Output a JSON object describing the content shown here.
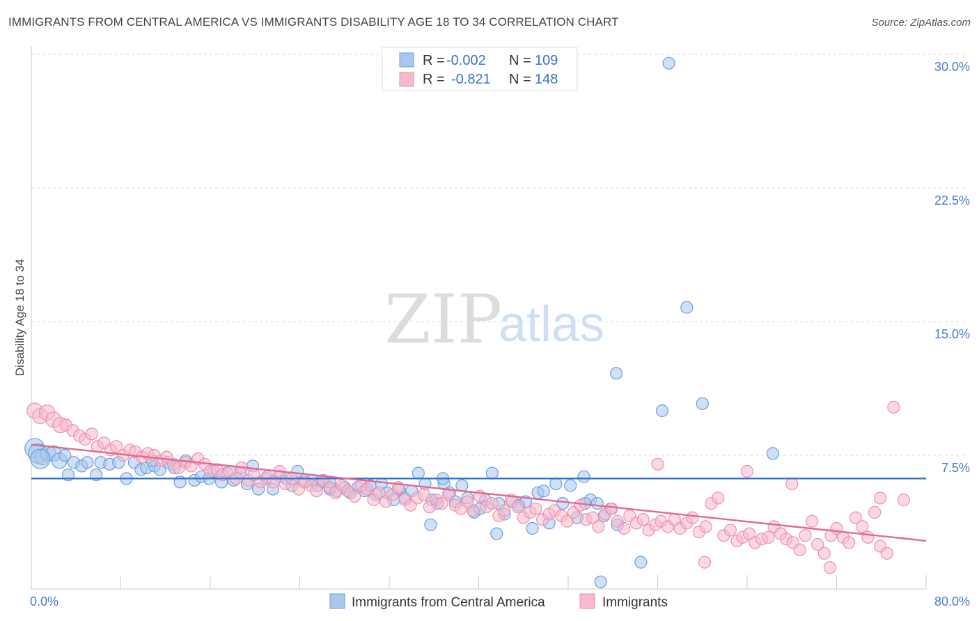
{
  "header": {
    "title": "IMMIGRANTS FROM CENTRAL AMERICA VS IMMIGRANTS DISABILITY AGE 18 TO 34 CORRELATION CHART",
    "source": "Source: ZipAtlas.com"
  },
  "watermark": {
    "part1": "ZIP",
    "part2": "atlas"
  },
  "colors": {
    "blue_fill": "#a9c8ef",
    "blue_stroke": "#6a9de0",
    "blue_line": "#2f6fd0",
    "pink_fill": "#f7b9cc",
    "pink_stroke": "#ee8fab",
    "pink_line": "#e4678f",
    "tick_text": "#4a7cc9",
    "grid": "#d9d9d9"
  },
  "legend": {
    "rows": [
      {
        "r_label": "R =",
        "r_value": "-0.002",
        "n_label": "N =",
        "n_value": "109"
      },
      {
        "r_label": "R =",
        "r_value": "-0.821",
        "n_label": "N =",
        "n_value": "148"
      }
    ]
  },
  "bottom_legend": [
    "Immigrants from Central America",
    "Immigrants"
  ],
  "chart_data": {
    "type": "scatter",
    "title": "IMMIGRANTS FROM CENTRAL AMERICA VS IMMIGRANTS DISABILITY AGE 18 TO 34 CORRELATION CHART",
    "xlabel": "",
    "ylabel": "Disability Age 18 to 34",
    "xlim": [
      0,
      80
    ],
    "ylim": [
      0,
      30
    ],
    "x_tick_labels": [
      "0.0%",
      "80.0%"
    ],
    "y_ticks": [
      7.5,
      15.0,
      22.5,
      30.0
    ],
    "y_tick_labels": [
      "7.5%",
      "15.0%",
      "22.5%",
      "30.0%"
    ],
    "grid": "horizontal dashed",
    "legend_position": "top-center",
    "series": [
      {
        "name": "Immigrants from Central America",
        "color": "#a9c8ef",
        "trend": {
          "x": [
            0,
            80
          ],
          "y": [
            6.2,
            6.2
          ]
        },
        "points": [
          [
            0.3,
            7.9
          ],
          [
            0.6,
            7.6
          ],
          [
            1.0,
            7.4
          ],
          [
            1.5,
            7.6
          ],
          [
            2.0,
            7.6
          ],
          [
            2.5,
            7.2
          ],
          [
            3.3,
            6.4
          ],
          [
            3.8,
            7.1
          ],
          [
            4.5,
            6.9
          ],
          [
            5.0,
            7.1
          ],
          [
            5.8,
            6.4
          ],
          [
            6.2,
            7.1
          ],
          [
            7.0,
            7.0
          ],
          [
            7.8,
            7.1
          ],
          [
            8.5,
            6.2
          ],
          [
            9.2,
            7.1
          ],
          [
            9.8,
            6.7
          ],
          [
            10.3,
            6.8
          ],
          [
            11.0,
            6.9
          ],
          [
            11.5,
            6.7
          ],
          [
            12.2,
            7.1
          ],
          [
            12.8,
            6.8
          ],
          [
            13.3,
            6.0
          ],
          [
            13.8,
            7.2
          ],
          [
            14.6,
            6.1
          ],
          [
            15.2,
            6.3
          ],
          [
            15.9,
            6.2
          ],
          [
            16.3,
            6.6
          ],
          [
            17.0,
            6.0
          ],
          [
            17.5,
            6.5
          ],
          [
            18.1,
            6.1
          ],
          [
            18.7,
            6.5
          ],
          [
            19.3,
            5.9
          ],
          [
            19.8,
            6.9
          ],
          [
            20.3,
            5.6
          ],
          [
            21.0,
            6.2
          ],
          [
            21.6,
            5.6
          ],
          [
            22.2,
            6.3
          ],
          [
            22.8,
            6.2
          ],
          [
            23.3,
            5.8
          ],
          [
            23.8,
            6.6
          ],
          [
            24.5,
            6.0
          ],
          [
            25.1,
            6.1
          ],
          [
            25.6,
            5.8
          ],
          [
            26.1,
            6.0
          ],
          [
            26.7,
            5.6
          ],
          [
            27.3,
            5.5
          ],
          [
            28.0,
            5.7
          ],
          [
            28.5,
            5.4
          ],
          [
            29.2,
            5.7
          ],
          [
            29.8,
            5.5
          ],
          [
            30.3,
            5.8
          ],
          [
            30.8,
            5.3
          ],
          [
            31.3,
            5.9
          ],
          [
            31.8,
            5.4
          ],
          [
            32.4,
            5.0
          ],
          [
            32.9,
            5.6
          ],
          [
            33.4,
            5.1
          ],
          [
            34.0,
            5.5
          ],
          [
            34.6,
            6.5
          ],
          [
            35.2,
            5.9
          ],
          [
            35.8,
            5.0
          ],
          [
            36.3,
            4.8
          ],
          [
            36.9,
            5.9
          ],
          [
            37.4,
            5.4
          ],
          [
            37.9,
            4.9
          ],
          [
            38.5,
            5.8
          ],
          [
            39.0,
            5.1
          ],
          [
            39.6,
            4.3
          ],
          [
            40.1,
            4.5
          ],
          [
            40.6,
            5.0
          ],
          [
            41.2,
            6.5
          ],
          [
            41.8,
            4.8
          ],
          [
            42.3,
            4.2
          ],
          [
            43.0,
            4.9
          ],
          [
            43.6,
            4.7
          ],
          [
            44.2,
            4.9
          ],
          [
            44.8,
            3.4
          ],
          [
            45.3,
            5.4
          ],
          [
            45.8,
            5.5
          ],
          [
            46.3,
            3.7
          ],
          [
            46.9,
            5.9
          ],
          [
            47.5,
            4.8
          ],
          [
            48.2,
            5.8
          ],
          [
            48.8,
            4.0
          ],
          [
            49.4,
            6.3
          ],
          [
            50.0,
            5.0
          ],
          [
            50.6,
            4.8
          ],
          [
            51.2,
            4.1
          ],
          [
            51.8,
            4.5
          ],
          [
            52.4,
            3.6
          ],
          [
            0.8,
            7.3
          ],
          [
            3.0,
            7.5
          ],
          [
            10.8,
            7.2
          ],
          [
            26.7,
            6.0
          ],
          [
            36.8,
            6.2
          ],
          [
            35.7,
            3.6
          ],
          [
            41.6,
            3.1
          ],
          [
            49.5,
            4.8
          ],
          [
            57.0,
            29.5
          ],
          [
            58.6,
            15.8
          ],
          [
            52.3,
            12.1
          ],
          [
            56.4,
            10.0
          ],
          [
            60.0,
            10.4
          ],
          [
            66.3,
            7.6
          ],
          [
            54.5,
            1.5
          ],
          [
            50.9,
            0.4
          ]
        ]
      },
      {
        "name": "Immigrants",
        "color": "#f7b9cc",
        "trend": {
          "x": [
            0,
            80
          ],
          "y": [
            8.1,
            2.7
          ]
        },
        "points": [
          [
            0.3,
            10.0
          ],
          [
            0.8,
            9.7
          ],
          [
            1.4,
            9.9
          ],
          [
            2.0,
            9.5
          ],
          [
            2.6,
            9.2
          ],
          [
            3.1,
            9.2
          ],
          [
            3.7,
            8.9
          ],
          [
            4.3,
            8.6
          ],
          [
            4.8,
            8.4
          ],
          [
            5.4,
            8.7
          ],
          [
            5.9,
            8.0
          ],
          [
            6.5,
            8.2
          ],
          [
            7.1,
            7.8
          ],
          [
            7.6,
            8.0
          ],
          [
            8.2,
            7.5
          ],
          [
            8.8,
            7.8
          ],
          [
            9.3,
            7.7
          ],
          [
            9.9,
            7.4
          ],
          [
            10.4,
            7.6
          ],
          [
            11.0,
            7.5
          ],
          [
            11.6,
            7.2
          ],
          [
            12.1,
            7.4
          ],
          [
            12.7,
            7.0
          ],
          [
            13.2,
            6.8
          ],
          [
            13.8,
            7.1
          ],
          [
            14.3,
            6.9
          ],
          [
            14.9,
            7.3
          ],
          [
            15.5,
            7.0
          ],
          [
            16.0,
            6.6
          ],
          [
            16.6,
            6.7
          ],
          [
            17.1,
            6.4
          ],
          [
            17.7,
            6.6
          ],
          [
            18.3,
            6.2
          ],
          [
            18.8,
            6.8
          ],
          [
            19.4,
            6.1
          ],
          [
            19.9,
            6.4
          ],
          [
            20.5,
            6.0
          ],
          [
            21.1,
            6.3
          ],
          [
            21.6,
            6.0
          ],
          [
            22.2,
            6.6
          ],
          [
            22.7,
            5.9
          ],
          [
            23.3,
            6.2
          ],
          [
            23.9,
            5.6
          ],
          [
            24.4,
            6.0
          ],
          [
            25.0,
            5.8
          ],
          [
            25.5,
            5.5
          ],
          [
            26.1,
            6.1
          ],
          [
            26.7,
            5.7
          ],
          [
            27.2,
            5.4
          ],
          [
            27.8,
            5.8
          ],
          [
            28.3,
            5.5
          ],
          [
            28.9,
            5.2
          ],
          [
            29.5,
            5.8
          ],
          [
            30.0,
            5.6
          ],
          [
            30.6,
            5.0
          ],
          [
            31.1,
            5.4
          ],
          [
            31.7,
            4.9
          ],
          [
            32.3,
            5.3
          ],
          [
            32.8,
            5.7
          ],
          [
            33.4,
            5.0
          ],
          [
            33.9,
            4.7
          ],
          [
            34.5,
            5.1
          ],
          [
            35.1,
            5.3
          ],
          [
            35.6,
            4.6
          ],
          [
            36.2,
            5.0
          ],
          [
            36.7,
            4.8
          ],
          [
            37.3,
            5.3
          ],
          [
            37.9,
            4.7
          ],
          [
            38.4,
            4.5
          ],
          [
            39.0,
            4.9
          ],
          [
            39.5,
            4.4
          ],
          [
            40.1,
            5.2
          ],
          [
            40.7,
            4.6
          ],
          [
            41.2,
            4.8
          ],
          [
            41.8,
            4.1
          ],
          [
            42.3,
            4.4
          ],
          [
            42.9,
            5.0
          ],
          [
            43.5,
            4.6
          ],
          [
            44.0,
            4.0
          ],
          [
            44.6,
            4.3
          ],
          [
            45.1,
            4.5
          ],
          [
            45.7,
            3.9
          ],
          [
            46.3,
            4.2
          ],
          [
            46.8,
            4.4
          ],
          [
            47.4,
            4.1
          ],
          [
            47.9,
            3.8
          ],
          [
            48.5,
            4.3
          ],
          [
            49.1,
            4.7
          ],
          [
            49.6,
            3.9
          ],
          [
            50.2,
            4.0
          ],
          [
            50.7,
            3.5
          ],
          [
            51.3,
            4.2
          ],
          [
            51.9,
            4.5
          ],
          [
            52.4,
            3.8
          ],
          [
            53.0,
            3.4
          ],
          [
            53.5,
            4.1
          ],
          [
            54.1,
            3.7
          ],
          [
            54.7,
            3.9
          ],
          [
            55.2,
            3.3
          ],
          [
            55.8,
            3.6
          ],
          [
            56.3,
            3.8
          ],
          [
            56.9,
            3.5
          ],
          [
            57.5,
            3.9
          ],
          [
            58.0,
            3.4
          ],
          [
            58.6,
            3.7
          ],
          [
            59.1,
            4.0
          ],
          [
            59.7,
            3.2
          ],
          [
            60.3,
            3.5
          ],
          [
            60.8,
            4.8
          ],
          [
            61.4,
            5.1
          ],
          [
            61.9,
            3.0
          ],
          [
            62.5,
            3.3
          ],
          [
            63.1,
            2.7
          ],
          [
            63.6,
            2.9
          ],
          [
            64.2,
            3.1
          ],
          [
            64.7,
            2.6
          ],
          [
            65.3,
            2.8
          ],
          [
            65.9,
            2.9
          ],
          [
            66.4,
            3.5
          ],
          [
            67.0,
            3.1
          ],
          [
            67.5,
            2.8
          ],
          [
            68.1,
            2.6
          ],
          [
            68.7,
            2.2
          ],
          [
            69.2,
            3.0
          ],
          [
            69.8,
            3.8
          ],
          [
            70.3,
            2.5
          ],
          [
            70.9,
            2.0
          ],
          [
            71.5,
            3.0
          ],
          [
            72.0,
            3.4
          ],
          [
            72.6,
            2.9
          ],
          [
            73.1,
            2.6
          ],
          [
            73.7,
            4.0
          ],
          [
            74.3,
            3.5
          ],
          [
            74.8,
            2.9
          ],
          [
            75.4,
            4.3
          ],
          [
            75.9,
            2.4
          ],
          [
            76.5,
            2.0
          ],
          [
            77.1,
            10.2
          ],
          [
            78.0,
            5.0
          ],
          [
            56.0,
            7.0
          ],
          [
            68.0,
            5.9
          ],
          [
            75.9,
            5.1
          ],
          [
            64.0,
            6.6
          ],
          [
            71.4,
            1.2
          ],
          [
            60.2,
            1.5
          ]
        ]
      }
    ]
  }
}
